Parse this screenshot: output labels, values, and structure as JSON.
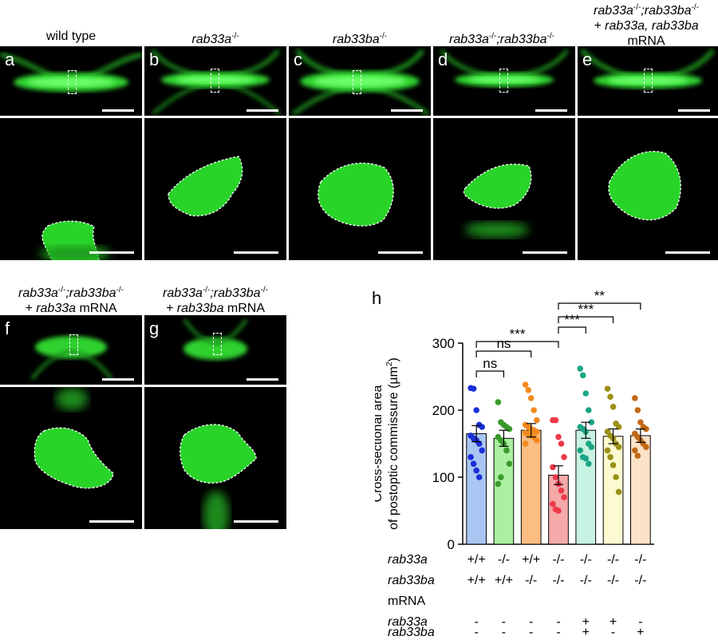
{
  "panels_top": [
    {
      "letter": "a",
      "title": "wild type",
      "italic": false
    },
    {
      "letter": "b",
      "title": "rab33a",
      "italic": true
    },
    {
      "letter": "c",
      "title": "rab33ba",
      "italic": true
    },
    {
      "letter": "d",
      "title": "rab33a;rab33ba",
      "italic": true
    },
    {
      "letter": "e",
      "title": "rab33a;rab33ba + rab33a, rab33ba mRNA",
      "italic": true
    }
  ],
  "titles": {
    "b": "rab33a",
    "c": "rab33ba",
    "d1": "rab33a",
    "d2": ";rab33ba",
    "e1": "rab33a",
    "e2": ";rab33ba",
    "e3": "+ rab33a, rab33ba",
    "e4": "mRNA",
    "f1": "rab33a",
    "f2": ";rab33ba",
    "f3": "+ rab33a",
    "f4": " mRNA",
    "g1": "rab33a",
    "g2": ";rab33ba",
    "g3": "+ rab33ba",
    "g4": " mRNA",
    "minus": "-/-"
  },
  "letters": {
    "a": "a",
    "b": "b",
    "c": "c",
    "d": "d",
    "e": "e",
    "f": "f",
    "g": "g",
    "h": "h"
  },
  "chart_data": {
    "type": "bar",
    "ylabel_line1": "Cross-sectional area",
    "ylabel_line2": "of postoptic commissure (µm",
    "ylabel_sup": "2",
    "ylabel_close": ")",
    "ylim": [
      0,
      300
    ],
    "yticks": [
      0,
      100,
      200,
      300
    ],
    "categories": [
      "+/+ ; +/+",
      "-/- ; +/+",
      "+/+ ; -/-",
      "-/- ; -/-",
      "-/- ; -/- + both",
      "-/- ; -/- + rab33a",
      "-/- ; -/- + rab33ba"
    ],
    "values": [
      165,
      158,
      170,
      103,
      170,
      161,
      162
    ],
    "errors": [
      12,
      12,
      10,
      14,
      12,
      11,
      10
    ],
    "fill_colors": [
      "#a9c6f2",
      "#aaf0a0",
      "#fbbd82",
      "#f5aaaa",
      "#c8f2e2",
      "#fbfad0",
      "#fbe2c8"
    ],
    "point_colors": [
      "#1a2ed8",
      "#3a9a2a",
      "#f28a1e",
      "#ec3a4a",
      "#1aa585",
      "#9a9018",
      "#c06a18"
    ],
    "points": [
      [
        233,
        232,
        200,
        178,
        175,
        162,
        158,
        155,
        150,
        140,
        130,
        120,
        110,
        100
      ],
      [
        212,
        182,
        178,
        175,
        172,
        160,
        155,
        150,
        140,
        120,
        90,
        100
      ],
      [
        238,
        230,
        218,
        200,
        185,
        178,
        175,
        172,
        170,
        168,
        166,
        165,
        162,
        160,
        155,
        150
      ],
      [
        185,
        185,
        160,
        150,
        130,
        115,
        100,
        90,
        80,
        70,
        60,
        52,
        50
      ],
      [
        262,
        252,
        225,
        200,
        182,
        175,
        172,
        168,
        150,
        145,
        140,
        130,
        128,
        120
      ],
      [
        232,
        220,
        205,
        180,
        175,
        168,
        162,
        158,
        150,
        145,
        140,
        130,
        118,
        100,
        78
      ],
      [
        218,
        200,
        182,
        175,
        172,
        165,
        160,
        155,
        150,
        145,
        140,
        132
      ]
    ],
    "significance": [
      {
        "from": 0,
        "to": 1,
        "label": "ns"
      },
      {
        "from": 0,
        "to": 2,
        "label": "ns"
      },
      {
        "from": 0,
        "to": 3,
        "label": "***"
      },
      {
        "from": 3,
        "to": 4,
        "label": "***"
      },
      {
        "from": 3,
        "to": 5,
        "label": "***"
      },
      {
        "from": 3,
        "to": 6,
        "label": "**"
      }
    ],
    "table": {
      "row_labels": [
        "rab33a",
        "rab33ba",
        "mRNA",
        "rab33a",
        "rab33ba"
      ],
      "rows": [
        [
          "+/+",
          "-/-",
          "+/+",
          "-/-",
          "-/-",
          "-/-",
          "-/-"
        ],
        [
          "+/+",
          "+/+",
          "-/-",
          "-/-",
          "-/-",
          "-/-",
          "-/-"
        ],
        [
          "",
          "",
          "",
          "",
          "",
          "",
          ""
        ],
        [
          "-",
          "-",
          "-",
          "-",
          "+",
          "+",
          "-"
        ],
        [
          "-",
          "-",
          "-",
          "-",
          "+",
          "-",
          "+"
        ]
      ]
    }
  }
}
